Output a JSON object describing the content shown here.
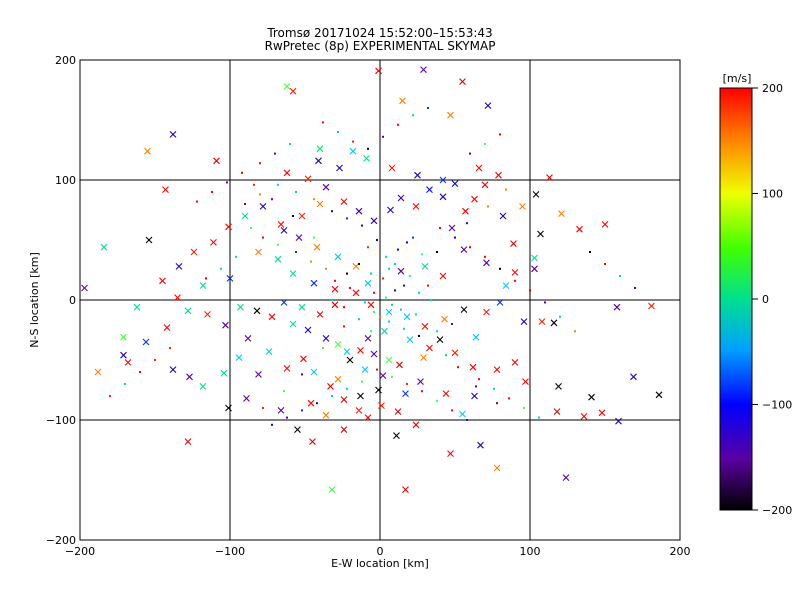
{
  "chart_data": {
    "type": "scatter",
    "title_line1": "Tromsø 20171024 15:52:00–15:53:43",
    "title_line2": "RwPretec (8p) EXPERIMENTAL SKYMAP",
    "xlabel": "E-W location [km]",
    "ylabel": "N-S location [km]",
    "xlim": [
      -200,
      200
    ],
    "ylim": [
      -200,
      200
    ],
    "xticks": [
      -200,
      -100,
      0,
      100,
      200
    ],
    "yticks": [
      -200,
      -100,
      0,
      100,
      200
    ],
    "grid_lines": [
      -100,
      0,
      100
    ],
    "colorbar": {
      "label": "[m/s]",
      "range": [
        -200,
        200
      ],
      "ticks": [
        200,
        100,
        0,
        -100,
        -200
      ]
    },
    "series": [
      {
        "marker": "x",
        "points": [
          [
            -1,
            191
          ],
          [
            29,
            192
          ],
          [
            55,
            182
          ],
          [
            -58,
            174
          ],
          [
            -155,
            124
          ],
          [
            -138,
            138
          ],
          [
            -109,
            116
          ],
          [
            15,
            166
          ],
          [
            47,
            154
          ],
          [
            72,
            162
          ],
          [
            -40,
            126
          ],
          [
            -18,
            124
          ],
          [
            -62,
            178
          ],
          [
            -143,
            92
          ],
          [
            -154,
            50
          ],
          [
            -184,
            44
          ],
          [
            -162,
            -6
          ],
          [
            -135,
            2
          ],
          [
            -118,
            12
          ],
          [
            -100,
            18
          ],
          [
            -197,
            10
          ],
          [
            -171,
            -31
          ],
          [
            -168,
            -52
          ],
          [
            -138,
            -58
          ],
          [
            -127,
            -64
          ],
          [
            -118,
            -72
          ],
          [
            -104,
            -61
          ],
          [
            -94,
            -48
          ],
          [
            -81,
            -62
          ],
          [
            -66,
            -92
          ],
          [
            -55,
            -108
          ],
          [
            -45,
            -118
          ],
          [
            -32,
            -158
          ],
          [
            -24,
            -108
          ],
          [
            -14,
            -92
          ],
          [
            -8,
            -98
          ],
          [
            11,
            -113
          ],
          [
            17,
            -158
          ],
          [
            47,
            -128
          ],
          [
            67,
            -121
          ],
          [
            78,
            -140
          ],
          [
            124,
            -148
          ],
          [
            136,
            -97
          ],
          [
            148,
            -94
          ],
          [
            159,
            -101
          ],
          [
            169,
            -64
          ],
          [
            186,
            -79
          ],
          [
            181,
            -5
          ],
          [
            158,
            -6
          ],
          [
            150,
            63
          ],
          [
            107,
            55
          ],
          [
            113,
            102
          ],
          [
            103,
            35
          ],
          [
            103,
            26
          ],
          [
            96,
            -18
          ],
          [
            108,
            -18
          ],
          [
            116,
            -19
          ],
          [
            97,
            -68
          ],
          [
            119,
            -72
          ],
          [
            141,
            -81
          ],
          [
            118,
            -93
          ],
          [
            63,
            -80
          ],
          [
            55,
            -95
          ],
          [
            44,
            -78
          ],
          [
            27,
            -68
          ],
          [
            17,
            -78
          ],
          [
            2,
            -63
          ],
          [
            -10,
            -58
          ],
          [
            -22,
            -43
          ],
          [
            -36,
            -32
          ],
          [
            -48,
            -25
          ],
          [
            -58,
            -20
          ],
          [
            -72,
            -14
          ],
          [
            -82,
            -9
          ],
          [
            -93,
            -6
          ],
          [
            -51,
            -49
          ],
          [
            -44,
            -60
          ],
          [
            -33,
            -72
          ],
          [
            -24,
            -83
          ],
          [
            -1,
            -75
          ],
          [
            6,
            -50
          ],
          [
            -4,
            -45
          ],
          [
            -13,
            -42
          ],
          [
            -28,
            -37
          ],
          [
            33,
            -40
          ],
          [
            40,
            -33
          ],
          [
            50,
            -44
          ],
          [
            62,
            -56
          ],
          [
            78,
            -58
          ],
          [
            90,
            -52
          ],
          [
            64,
            -31
          ],
          [
            71,
            -10
          ],
          [
            80,
            -2
          ],
          [
            84,
            12
          ],
          [
            90,
            23
          ],
          [
            71,
            31
          ],
          [
            56,
            42
          ],
          [
            48,
            60
          ],
          [
            57,
            74
          ],
          [
            63,
            84
          ],
          [
            70,
            96
          ],
          [
            79,
            104
          ],
          [
            66,
            110
          ],
          [
            50,
            97
          ],
          [
            42,
            86
          ],
          [
            33,
            92
          ],
          [
            24,
            78
          ],
          [
            14,
            85
          ],
          [
            7,
            75
          ],
          [
            -4,
            66
          ],
          [
            -14,
            74
          ],
          [
            -24,
            82
          ],
          [
            -36,
            94
          ],
          [
            -48,
            101
          ],
          [
            -62,
            106
          ],
          [
            -78,
            78
          ],
          [
            -90,
            70
          ],
          [
            -101,
            61
          ],
          [
            -111,
            48
          ],
          [
            -124,
            40
          ],
          [
            -134,
            28
          ],
          [
            -145,
            16
          ],
          [
            -81,
            40
          ],
          [
            -68,
            34
          ],
          [
            -58,
            22
          ],
          [
            -44,
            14
          ],
          [
            -30,
            9
          ],
          [
            -16,
            6
          ],
          [
            -6,
            -4
          ],
          [
            6,
            -10
          ],
          [
            18,
            -14
          ],
          [
            30,
            -22
          ],
          [
            43,
            -16
          ],
          [
            56,
            -8
          ],
          [
            -46,
            -86
          ],
          [
            -36,
            -96
          ],
          [
            -89,
            -82
          ],
          [
            -101,
            -90
          ],
          [
            -128,
            -118
          ],
          [
            -20,
            -50
          ],
          [
            -8,
            -32
          ],
          [
            3,
            -26
          ],
          [
            20,
            -33
          ],
          [
            29,
            -48
          ],
          [
            13,
            -54
          ],
          [
            -28,
            -66
          ],
          [
            -13,
            -80
          ],
          [
            1,
            -88
          ],
          [
            12,
            -93
          ],
          [
            24,
            -104
          ],
          [
            -62,
            -57
          ],
          [
            -74,
            -43
          ],
          [
            -88,
            -32
          ],
          [
            -103,
            -21
          ],
          [
            -115,
            -12
          ],
          [
            -128,
            -9
          ],
          [
            -142,
            -23
          ],
          [
            -156,
            -35
          ],
          [
            -171,
            -46
          ],
          [
            -188,
            -60
          ],
          [
            42,
            100
          ],
          [
            25,
            104
          ],
          [
            8,
            110
          ],
          [
            -9,
            118
          ],
          [
            -27,
            110
          ],
          [
            -41,
            116
          ],
          [
            82,
            70
          ],
          [
            95,
            78
          ],
          [
            104,
            88
          ],
          [
            121,
            72
          ],
          [
            133,
            59
          ],
          [
            89,
            47
          ],
          [
            -64,
            58
          ],
          [
            -52,
            70
          ],
          [
            -40,
            80
          ],
          [
            -30,
            -4
          ],
          [
            -40,
            -12
          ],
          [
            -52,
            -6
          ],
          [
            -64,
            -2
          ],
          [
            -8,
            14
          ],
          [
            14,
            24
          ],
          [
            30,
            28
          ],
          [
            42,
            20
          ],
          [
            -16,
            28
          ],
          [
            -28,
            36
          ],
          [
            -42,
            44
          ],
          [
            -54,
            52
          ],
          [
            -66,
            63
          ]
        ]
      },
      {
        "marker": "dot",
        "points": [
          [
            12,
            42
          ],
          [
            18,
            48
          ],
          [
            22,
            52
          ],
          [
            -8,
            44
          ],
          [
            -2,
            50
          ],
          [
            4,
            36
          ],
          [
            10,
            30
          ],
          [
            28,
            38
          ],
          [
            -14,
            30
          ],
          [
            -22,
            22
          ],
          [
            -30,
            16
          ],
          [
            -6,
            22
          ],
          [
            2,
            18
          ],
          [
            16,
            12
          ],
          [
            26,
            6
          ],
          [
            34,
            0
          ],
          [
            8,
            -4
          ],
          [
            -4,
            -10
          ],
          [
            -14,
            -16
          ],
          [
            -24,
            -22
          ],
          [
            6,
            -18
          ],
          [
            16,
            -24
          ],
          [
            26,
            -30
          ],
          [
            38,
            -26
          ],
          [
            48,
            -20
          ],
          [
            -36,
            26
          ],
          [
            -46,
            32
          ],
          [
            -56,
            40
          ],
          [
            -68,
            46
          ],
          [
            -78,
            52
          ],
          [
            -86,
            60
          ],
          [
            -96,
            36
          ],
          [
            -106,
            26
          ],
          [
            -116,
            18
          ],
          [
            -12,
            62
          ],
          [
            -22,
            68
          ],
          [
            -32,
            74
          ],
          [
            -44,
            84
          ],
          [
            -56,
            90
          ],
          [
            -68,
            96
          ],
          [
            -80,
            88
          ],
          [
            -90,
            80
          ],
          [
            40,
            60
          ],
          [
            50,
            52
          ],
          [
            60,
            44
          ],
          [
            70,
            36
          ],
          [
            80,
            26
          ],
          [
            90,
            16
          ],
          [
            100,
            8
          ],
          [
            110,
            -2
          ],
          [
            120,
            -14
          ],
          [
            130,
            -26
          ],
          [
            -2,
            -58
          ],
          [
            8,
            -64
          ],
          [
            18,
            -70
          ],
          [
            28,
            -76
          ],
          [
            38,
            -84
          ],
          [
            48,
            -92
          ],
          [
            58,
            -100
          ],
          [
            -12,
            -68
          ],
          [
            -22,
            -74
          ],
          [
            -32,
            -80
          ],
          [
            -42,
            -86
          ],
          [
            -52,
            -92
          ],
          [
            -62,
            -98
          ],
          [
            -72,
            -104
          ],
          [
            2,
            136
          ],
          [
            12,
            146
          ],
          [
            22,
            154
          ],
          [
            32,
            160
          ],
          [
            -8,
            126
          ],
          [
            -18,
            132
          ],
          [
            -28,
            140
          ],
          [
            -38,
            148
          ],
          [
            60,
            122
          ],
          [
            70,
            130
          ],
          [
            80,
            138
          ],
          [
            -60,
            130
          ],
          [
            -70,
            122
          ],
          [
            -80,
            114
          ],
          [
            -92,
            106
          ],
          [
            -102,
            98
          ],
          [
            -112,
            90
          ],
          [
            -122,
            82
          ],
          [
            140,
            40
          ],
          [
            150,
            30
          ],
          [
            160,
            20
          ],
          [
            170,
            10
          ],
          [
            -140,
            -40
          ],
          [
            -150,
            -50
          ],
          [
            -160,
            -60
          ],
          [
            -170,
            -70
          ],
          [
            -180,
            -80
          ],
          [
            66,
            -66
          ],
          [
            76,
            -74
          ],
          [
            86,
            -82
          ],
          [
            96,
            -90
          ],
          [
            106,
            -98
          ],
          [
            -4,
            6
          ],
          [
            4,
            2
          ],
          [
            10,
            8
          ],
          [
            -10,
            -2
          ],
          [
            0,
            -14
          ],
          [
            14,
            -8
          ],
          [
            20,
            20
          ],
          [
            -20,
            10
          ],
          [
            6,
            26
          ],
          [
            -6,
            -26
          ],
          [
            24,
            -12
          ],
          [
            -24,
            -6
          ],
          [
            32,
            12
          ],
          [
            -32,
            0
          ],
          [
            38,
            40
          ],
          [
            -38,
            -40
          ],
          [
            44,
            -46
          ],
          [
            -44,
            52
          ],
          [
            52,
            -56
          ],
          [
            -52,
            -62
          ],
          [
            58,
            64
          ],
          [
            -58,
            70
          ],
          [
            64,
            -72
          ],
          [
            -64,
            -76
          ],
          [
            72,
            78
          ],
          [
            -72,
            84
          ],
          [
            78,
            -86
          ],
          [
            -78,
            -90
          ],
          [
            84,
            92
          ],
          [
            -84,
            96
          ]
        ]
      }
    ]
  }
}
